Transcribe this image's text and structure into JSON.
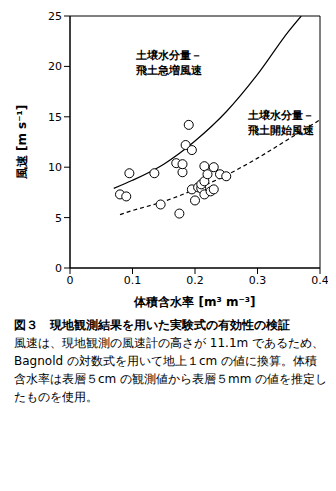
{
  "chart_data": {
    "type": "scatter",
    "x_label": "体積含水率 [m³ m⁻³]",
    "y_label": "風速 [m s⁻¹]",
    "xlim": [
      0,
      0.4
    ],
    "xticks": [
      0,
      0.1,
      0.2,
      0.3,
      0.4
    ],
    "ylim": [
      0,
      25
    ],
    "yticks": [
      0,
      5,
      10,
      15,
      20,
      25
    ],
    "grid": false,
    "series": [
      {
        "type": "scatter",
        "marker": "circle",
        "color": "#000000",
        "x": [
          0.08,
          0.09,
          0.095,
          0.135,
          0.145,
          0.175,
          0.17,
          0.18,
          0.18,
          0.185,
          0.19,
          0.195,
          0.195,
          0.2,
          0.205,
          0.21,
          0.21,
          0.215,
          0.215,
          0.215,
          0.22,
          0.225,
          0.23,
          0.23,
          0.24,
          0.25
        ],
        "values": [
          7.3,
          7.1,
          9.4,
          9.4,
          6.3,
          5.4,
          10.4,
          9.5,
          10.3,
          12.2,
          14.2,
          11.7,
          7.8,
          6.7,
          8.0,
          7.9,
          8.3,
          8.6,
          10.1,
          7.3,
          9.3,
          7.6,
          10.0,
          7.8,
          9.3,
          9.1
        ]
      },
      {
        "type": "line",
        "line_style": "solid",
        "color": "#000000",
        "x": [
          0.07,
          0.1,
          0.15,
          0.2,
          0.25,
          0.3,
          0.35,
          0.37
        ],
        "values": [
          7.9,
          8.7,
          10.3,
          12.6,
          15.5,
          19.2,
          23.5,
          25
        ]
      },
      {
        "type": "line",
        "line_style": "dashed",
        "color": "#000000",
        "x": [
          0.08,
          0.1,
          0.15,
          0.2,
          0.25,
          0.3,
          0.35,
          0.4
        ],
        "values": [
          5.3,
          5.7,
          6.6,
          7.8,
          9.2,
          10.9,
          12.8,
          14.7
        ]
      }
    ],
    "annotations": [
      [
        "土壌水分量－",
        "飛土急増風速"
      ],
      [
        "土壌水分量－",
        "飛土開始風速"
      ]
    ],
    "caption_title": "図３　現地観測結果を用いた実験式の有効性の検証",
    "caption_text": "風速は、現地観測の風速計の高さが 11.1m であるため、Bagnold の対数式を用いて地上１cm の値に換算。体積含水率は表層５cm の観測値から表層５mm の値を推定したものを使用。"
  }
}
